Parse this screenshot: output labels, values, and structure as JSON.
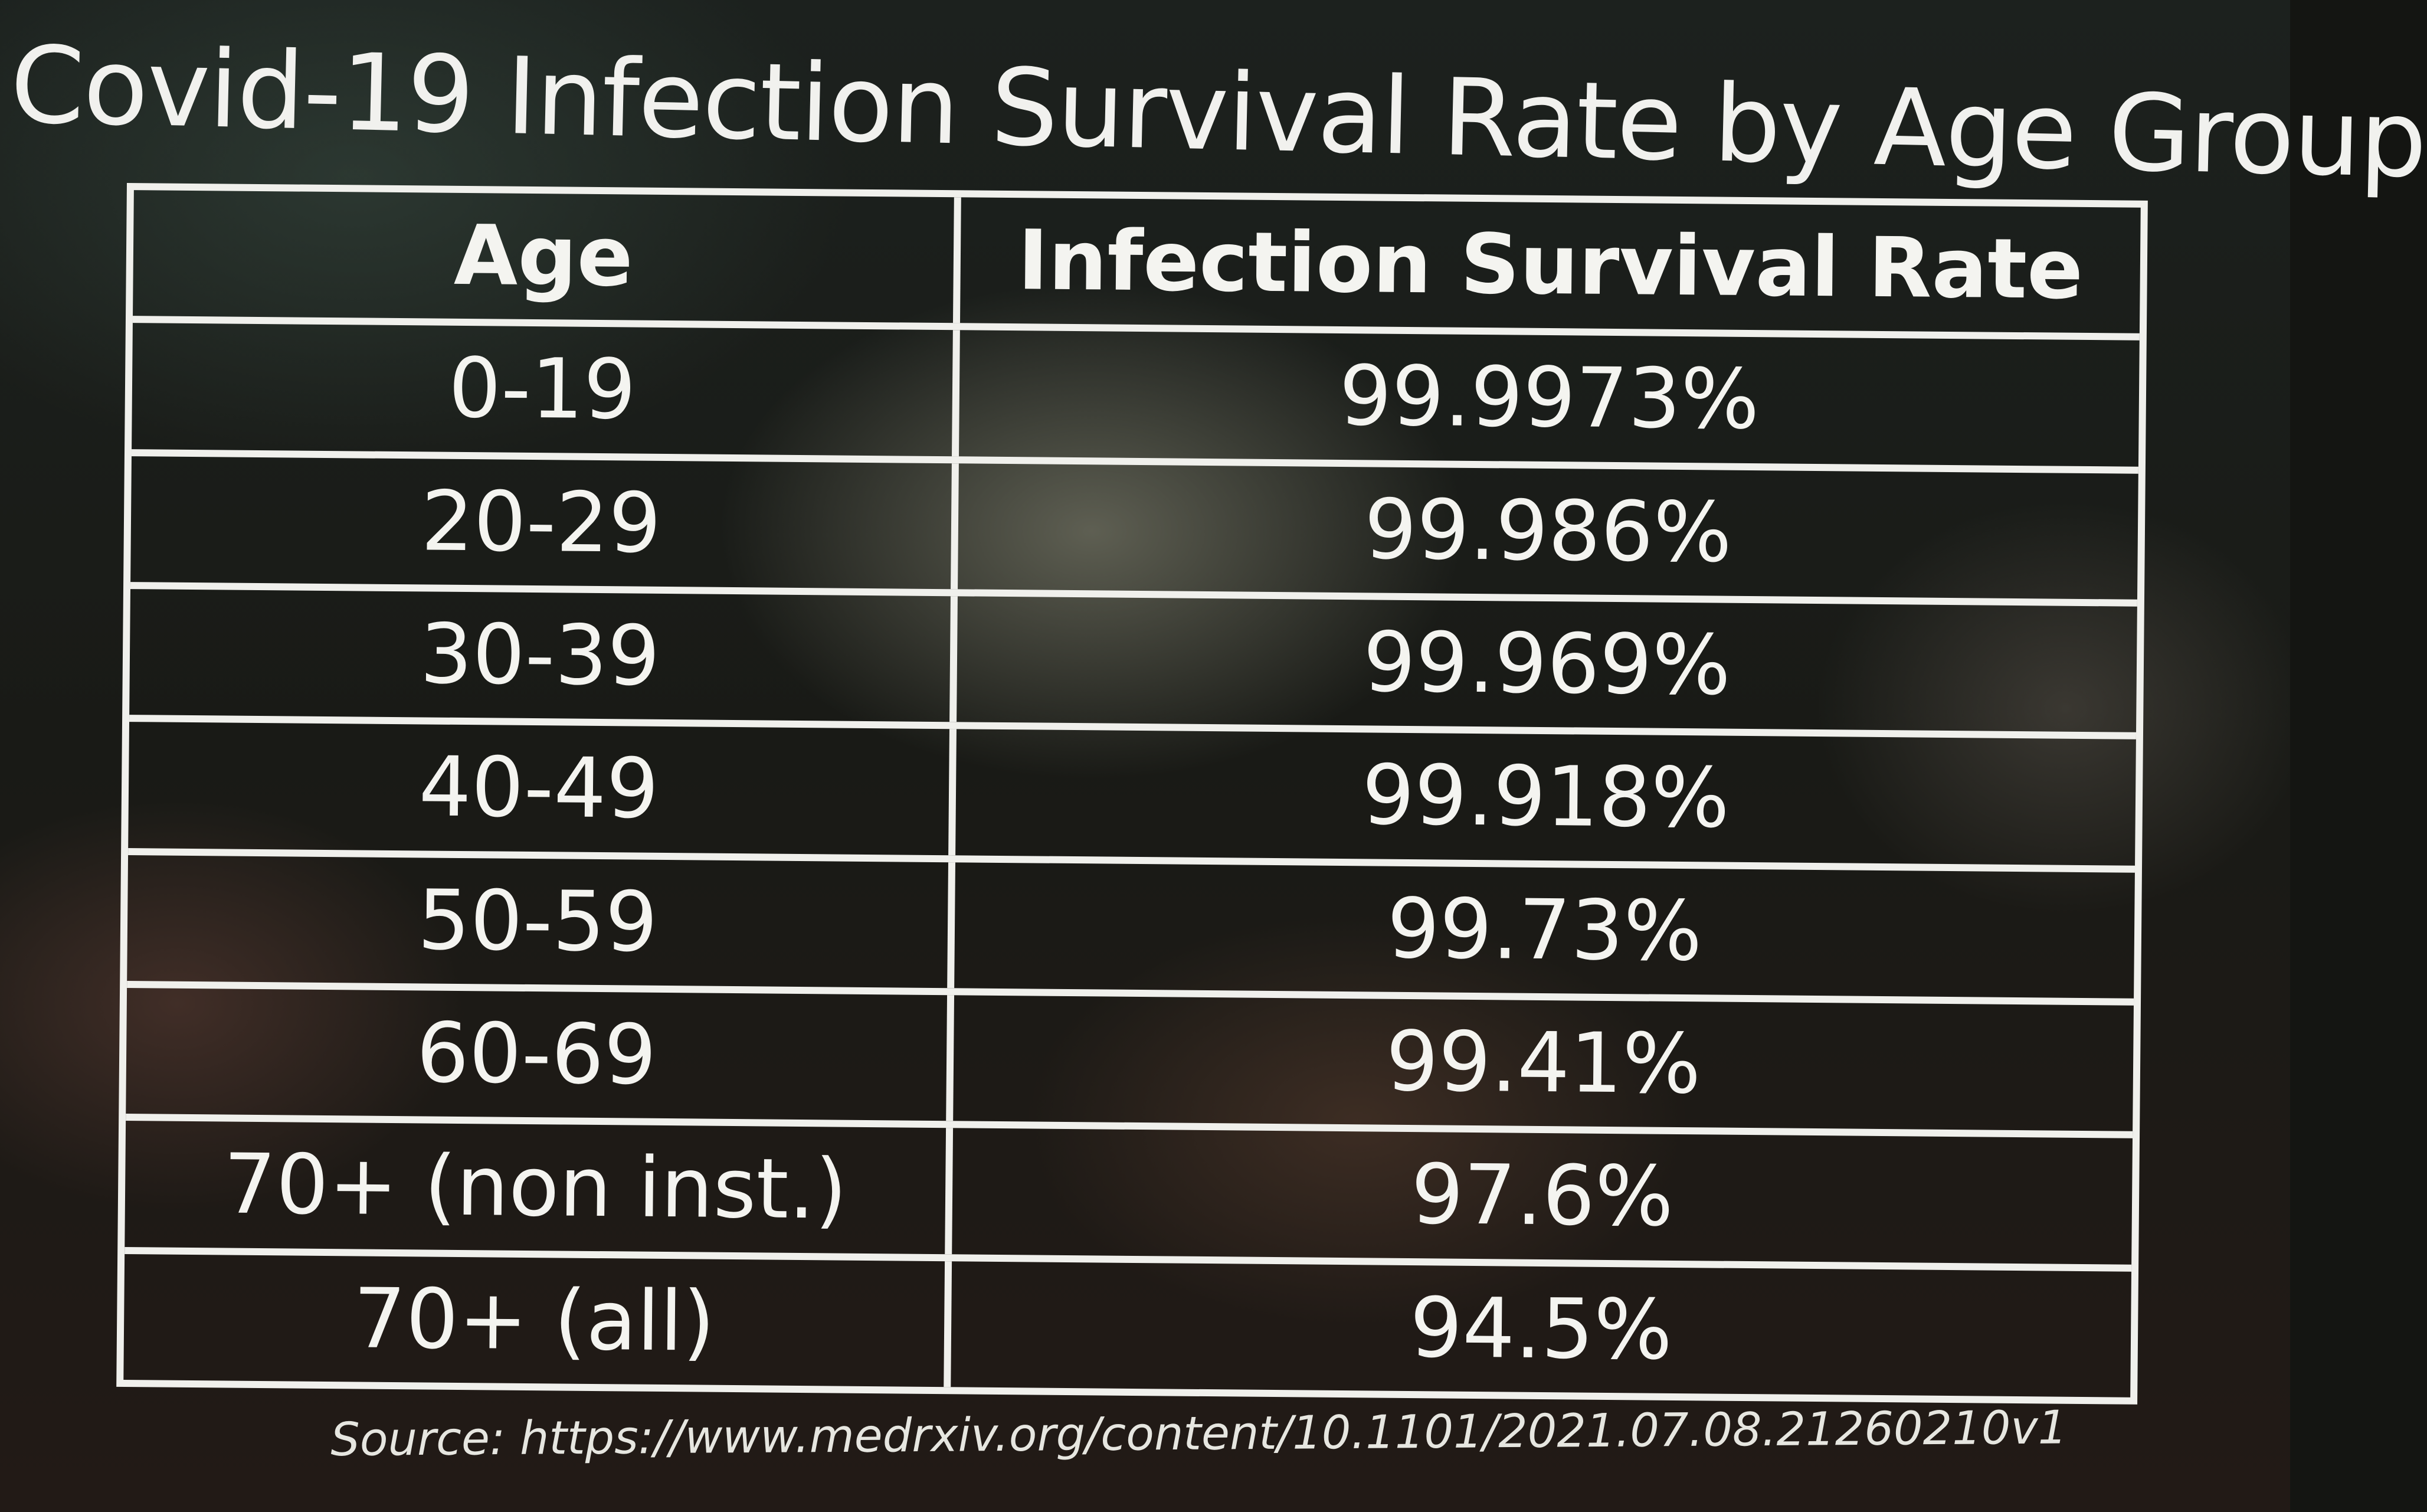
{
  "title": "Covid-19 Infection Survival Rate by Age Group",
  "source": "Source: https://www.medrxiv.org/content/10.1101/2021.07.08.21260210v1",
  "chart_data": {
    "type": "table",
    "title": "Covid-19 Infection Survival Rate by Age Group",
    "columns": [
      "Age",
      "Infection Survival Rate"
    ],
    "rows": [
      {
        "age": "0-19",
        "rate": "99.9973%"
      },
      {
        "age": "20-29",
        "rate": "99.986%"
      },
      {
        "age": "30-39",
        "rate": "99.969%"
      },
      {
        "age": "40-49",
        "rate": "99.918%"
      },
      {
        "age": "50-59",
        "rate": "99.73%"
      },
      {
        "age": "60-69",
        "rate": "99.41%"
      },
      {
        "age": "70+ (non inst.)",
        "rate": "97.6%"
      },
      {
        "age": "70+ (all)",
        "rate": "94.5%"
      }
    ]
  }
}
